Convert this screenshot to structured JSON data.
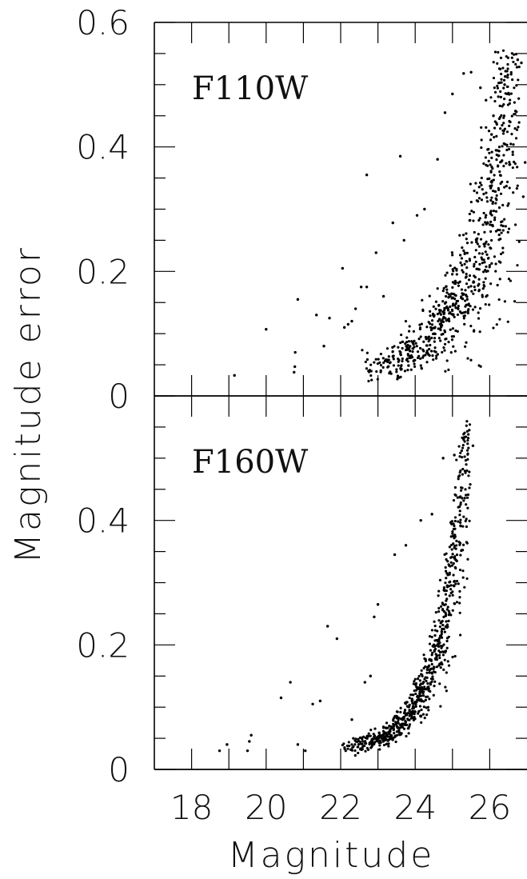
{
  "chart_data": {
    "type": "scatter",
    "xlabel": "Magnitude",
    "ylabel": "Magnitude error",
    "xlim": [
      17,
      27
    ],
    "xticks": [
      18,
      20,
      22,
      24,
      26
    ],
    "grid": false,
    "panels": [
      {
        "label": "F110W",
        "ylim": [
          0,
          0.6
        ],
        "ytick_labels": [
          "0",
          "0.2",
          "0.4",
          "0.6"
        ],
        "ytick_values": [
          0,
          0.2,
          0.4,
          0.6
        ],
        "points": [
          [
            19.15,
            0.033
          ],
          [
            20.0,
            0.107
          ],
          [
            20.75,
            0.038
          ],
          [
            20.77,
            0.047
          ],
          [
            20.78,
            0.07
          ],
          [
            20.85,
            0.155
          ],
          [
            21.35,
            0.13
          ],
          [
            21.55,
            0.08
          ],
          [
            21.7,
            0.125
          ],
          [
            22.05,
            0.205
          ],
          [
            22.1,
            0.11
          ],
          [
            22.2,
            0.115
          ],
          [
            22.3,
            0.12
          ],
          [
            22.4,
            0.14
          ],
          [
            22.55,
            0.175
          ],
          [
            22.7,
            0.175
          ],
          [
            22.7,
            0.355
          ],
          [
            22.95,
            0.23
          ],
          [
            23.15,
            0.16
          ],
          [
            23.4,
            0.278
          ],
          [
            23.6,
            0.385
          ],
          [
            23.7,
            0.25
          ],
          [
            24.05,
            0.29
          ],
          [
            24.25,
            0.3
          ],
          [
            24.6,
            0.38
          ],
          [
            24.8,
            0.455
          ],
          [
            25.0,
            0.485
          ],
          [
            25.3,
            0.518
          ],
          [
            25.5,
            0.52
          ],
          [
            25.75,
            0.495
          ],
          [
            25.9,
            0.475
          ],
          [
            26.05,
            0.42
          ],
          [
            26.1,
            0.45
          ],
          [
            26.3,
            0.48
          ],
          [
            26.4,
            0.5
          ],
          [
            26.55,
            0.44
          ],
          [
            26.75,
            0.54
          ],
          [
            26.85,
            0.535
          ],
          [
            26.95,
            0.375
          ],
          [
            26.9,
            0.32
          ]
        ],
        "point_density_note": ""
      },
      {
        "label": "F160W",
        "ylim": [
          0,
          0.6
        ],
        "ytick_labels": [
          "0",
          "0.2",
          "0.4"
        ],
        "ytick_values": [
          0,
          0.2,
          0.4
        ],
        "points": [
          [
            18.75,
            0.03
          ],
          [
            18.95,
            0.04
          ],
          [
            19.5,
            0.03
          ],
          [
            19.55,
            0.045
          ],
          [
            19.6,
            0.055
          ],
          [
            20.4,
            0.115
          ],
          [
            20.65,
            0.14
          ],
          [
            20.85,
            0.04
          ],
          [
            21.05,
            0.03
          ],
          [
            21.25,
            0.105
          ],
          [
            21.45,
            0.11
          ],
          [
            21.65,
            0.23
          ],
          [
            21.9,
            0.21
          ],
          [
            22.3,
            0.08
          ],
          [
            22.65,
            0.14
          ],
          [
            22.8,
            0.15
          ],
          [
            22.9,
            0.245
          ],
          [
            23.0,
            0.265
          ],
          [
            23.45,
            0.345
          ],
          [
            23.75,
            0.36
          ],
          [
            24.15,
            0.4
          ],
          [
            24.45,
            0.41
          ],
          [
            24.75,
            0.5
          ],
          [
            25.05,
            0.505
          ],
          [
            25.3,
            0.53
          ],
          [
            25.45,
            0.545
          ],
          [
            25.55,
            0.52
          ]
        ],
        "point_density_note": ""
      }
    ]
  }
}
